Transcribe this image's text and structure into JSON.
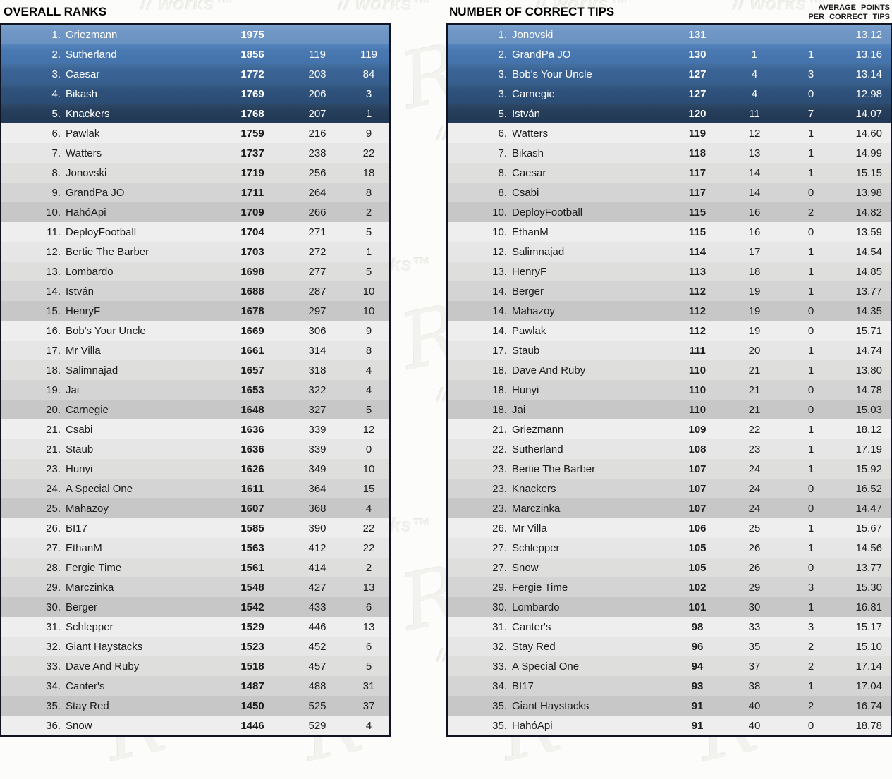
{
  "watermark": {
    "text": "works™",
    "swirl_glyph": "R"
  },
  "colors": {
    "blue_rows": [
      "#7097c6",
      "#4a79b2",
      "#3b6496",
      "#2f527c",
      "#263f5c"
    ],
    "gray_rows": [
      "#efeeee",
      "#e7e6e6",
      "#dededd",
      "#d5d4d4",
      "#c8c7c7"
    ],
    "table_border": "#101322",
    "row_text_dark": "#1c1c1c",
    "row_text_light": "#ffffff"
  },
  "left_table": {
    "title": "OVERALL RANKS",
    "rows": [
      {
        "rank": "1.",
        "name": "Griezmann",
        "points": "1975",
        "v1": "",
        "v2": ""
      },
      {
        "rank": "2.",
        "name": "Sutherland",
        "points": "1856",
        "v1": "119",
        "v2": "119"
      },
      {
        "rank": "3.",
        "name": "Caesar",
        "points": "1772",
        "v1": "203",
        "v2": "84"
      },
      {
        "rank": "4.",
        "name": "Bikash",
        "points": "1769",
        "v1": "206",
        "v2": "3"
      },
      {
        "rank": "5.",
        "name": "Knackers",
        "points": "1768",
        "v1": "207",
        "v2": "1"
      },
      {
        "rank": "6.",
        "name": "Pawlak",
        "points": "1759",
        "v1": "216",
        "v2": "9"
      },
      {
        "rank": "7.",
        "name": "Watters",
        "points": "1737",
        "v1": "238",
        "v2": "22"
      },
      {
        "rank": "8.",
        "name": "Jonovski",
        "points": "1719",
        "v1": "256",
        "v2": "18"
      },
      {
        "rank": "9.",
        "name": "GrandPa JO",
        "points": "1711",
        "v1": "264",
        "v2": "8"
      },
      {
        "rank": "10.",
        "name": "HahóApi",
        "points": "1709",
        "v1": "266",
        "v2": "2"
      },
      {
        "rank": "11.",
        "name": "DeployFootball",
        "points": "1704",
        "v1": "271",
        "v2": "5"
      },
      {
        "rank": "12.",
        "name": "Bertie The Barber",
        "points": "1703",
        "v1": "272",
        "v2": "1"
      },
      {
        "rank": "13.",
        "name": "Lombardo",
        "points": "1698",
        "v1": "277",
        "v2": "5"
      },
      {
        "rank": "14.",
        "name": "István",
        "points": "1688",
        "v1": "287",
        "v2": "10"
      },
      {
        "rank": "15.",
        "name": "HenryF",
        "points": "1678",
        "v1": "297",
        "v2": "10"
      },
      {
        "rank": "16.",
        "name": "Bob's Your Uncle",
        "points": "1669",
        "v1": "306",
        "v2": "9"
      },
      {
        "rank": "17.",
        "name": "Mr Villa",
        "points": "1661",
        "v1": "314",
        "v2": "8"
      },
      {
        "rank": "18.",
        "name": "Salimnajad",
        "points": "1657",
        "v1": "318",
        "v2": "4"
      },
      {
        "rank": "19.",
        "name": "Jai",
        "points": "1653",
        "v1": "322",
        "v2": "4"
      },
      {
        "rank": "20.",
        "name": "Carnegie",
        "points": "1648",
        "v1": "327",
        "v2": "5"
      },
      {
        "rank": "21.",
        "name": "Csabi",
        "points": "1636",
        "v1": "339",
        "v2": "12"
      },
      {
        "rank": "21.",
        "name": "Staub",
        "points": "1636",
        "v1": "339",
        "v2": "0"
      },
      {
        "rank": "23.",
        "name": "Hunyi",
        "points": "1626",
        "v1": "349",
        "v2": "10"
      },
      {
        "rank": "24.",
        "name": "A Special One",
        "points": "1611",
        "v1": "364",
        "v2": "15"
      },
      {
        "rank": "25.",
        "name": "Mahazoy",
        "points": "1607",
        "v1": "368",
        "v2": "4"
      },
      {
        "rank": "26.",
        "name": "BI17",
        "points": "1585",
        "v1": "390",
        "v2": "22"
      },
      {
        "rank": "27.",
        "name": "EthanM",
        "points": "1563",
        "v1": "412",
        "v2": "22"
      },
      {
        "rank": "28.",
        "name": "Fergie Time",
        "points": "1561",
        "v1": "414",
        "v2": "2"
      },
      {
        "rank": "29.",
        "name": "Marczinka",
        "points": "1548",
        "v1": "427",
        "v2": "13"
      },
      {
        "rank": "30.",
        "name": "Berger",
        "points": "1542",
        "v1": "433",
        "v2": "6"
      },
      {
        "rank": "31.",
        "name": "Schlepper",
        "points": "1529",
        "v1": "446",
        "v2": "13"
      },
      {
        "rank": "32.",
        "name": "Giant Haystacks",
        "points": "1523",
        "v1": "452",
        "v2": "6"
      },
      {
        "rank": "33.",
        "name": "Dave And Ruby",
        "points": "1518",
        "v1": "457",
        "v2": "5"
      },
      {
        "rank": "34.",
        "name": "Canter's",
        "points": "1487",
        "v1": "488",
        "v2": "31"
      },
      {
        "rank": "35.",
        "name": "Stay Red",
        "points": "1450",
        "v1": "525",
        "v2": "37"
      },
      {
        "rank": "36.",
        "name": "Snow",
        "points": "1446",
        "v1": "529",
        "v2": "4"
      }
    ]
  },
  "right_table": {
    "title": "NUMBER OF CORRECT TIPS",
    "avg_header_line1": "AVERAGE POINTS",
    "avg_header_line2": "PER CORRECT TIPS",
    "rows": [
      {
        "rank": "1.",
        "name": "Jonovski",
        "points": "131",
        "v1": "",
        "v2": "",
        "avg": "13.12"
      },
      {
        "rank": "2.",
        "name": "GrandPa JO",
        "points": "130",
        "v1": "1",
        "v2": "1",
        "avg": "13.16"
      },
      {
        "rank": "3.",
        "name": "Bob's Your Uncle",
        "points": "127",
        "v1": "4",
        "v2": "3",
        "avg": "13.14"
      },
      {
        "rank": "3.",
        "name": "Carnegie",
        "points": "127",
        "v1": "4",
        "v2": "0",
        "avg": "12.98"
      },
      {
        "rank": "5.",
        "name": "István",
        "points": "120",
        "v1": "11",
        "v2": "7",
        "avg": "14.07"
      },
      {
        "rank": "6.",
        "name": "Watters",
        "points": "119",
        "v1": "12",
        "v2": "1",
        "avg": "14.60"
      },
      {
        "rank": "7.",
        "name": "Bikash",
        "points": "118",
        "v1": "13",
        "v2": "1",
        "avg": "14.99"
      },
      {
        "rank": "8.",
        "name": "Caesar",
        "points": "117",
        "v1": "14",
        "v2": "1",
        "avg": "15.15"
      },
      {
        "rank": "8.",
        "name": "Csabi",
        "points": "117",
        "v1": "14",
        "v2": "0",
        "avg": "13.98"
      },
      {
        "rank": "10.",
        "name": "DeployFootball",
        "points": "115",
        "v1": "16",
        "v2": "2",
        "avg": "14.82"
      },
      {
        "rank": "10.",
        "name": "EthanM",
        "points": "115",
        "v1": "16",
        "v2": "0",
        "avg": "13.59"
      },
      {
        "rank": "12.",
        "name": "Salimnajad",
        "points": "114",
        "v1": "17",
        "v2": "1",
        "avg": "14.54"
      },
      {
        "rank": "13.",
        "name": "HenryF",
        "points": "113",
        "v1": "18",
        "v2": "1",
        "avg": "14.85"
      },
      {
        "rank": "14.",
        "name": "Berger",
        "points": "112",
        "v1": "19",
        "v2": "1",
        "avg": "13.77"
      },
      {
        "rank": "14.",
        "name": "Mahazoy",
        "points": "112",
        "v1": "19",
        "v2": "0",
        "avg": "14.35"
      },
      {
        "rank": "14.",
        "name": "Pawlak",
        "points": "112",
        "v1": "19",
        "v2": "0",
        "avg": "15.71"
      },
      {
        "rank": "17.",
        "name": "Staub",
        "points": "111",
        "v1": "20",
        "v2": "1",
        "avg": "14.74"
      },
      {
        "rank": "18.",
        "name": "Dave And Ruby",
        "points": "110",
        "v1": "21",
        "v2": "1",
        "avg": "13.80"
      },
      {
        "rank": "18.",
        "name": "Hunyi",
        "points": "110",
        "v1": "21",
        "v2": "0",
        "avg": "14.78"
      },
      {
        "rank": "18.",
        "name": "Jai",
        "points": "110",
        "v1": "21",
        "v2": "0",
        "avg": "15.03"
      },
      {
        "rank": "21.",
        "name": "Griezmann",
        "points": "109",
        "v1": "22",
        "v2": "1",
        "avg": "18.12"
      },
      {
        "rank": "22.",
        "name": "Sutherland",
        "points": "108",
        "v1": "23",
        "v2": "1",
        "avg": "17.19"
      },
      {
        "rank": "23.",
        "name": "Bertie The Barber",
        "points": "107",
        "v1": "24",
        "v2": "1",
        "avg": "15.92"
      },
      {
        "rank": "23.",
        "name": "Knackers",
        "points": "107",
        "v1": "24",
        "v2": "0",
        "avg": "16.52"
      },
      {
        "rank": "23.",
        "name": "Marczinka",
        "points": "107",
        "v1": "24",
        "v2": "0",
        "avg": "14.47"
      },
      {
        "rank": "26.",
        "name": "Mr Villa",
        "points": "106",
        "v1": "25",
        "v2": "1",
        "avg": "15.67"
      },
      {
        "rank": "27.",
        "name": "Schlepper",
        "points": "105",
        "v1": "26",
        "v2": "1",
        "avg": "14.56"
      },
      {
        "rank": "27.",
        "name": "Snow",
        "points": "105",
        "v1": "26",
        "v2": "0",
        "avg": "13.77"
      },
      {
        "rank": "29.",
        "name": "Fergie Time",
        "points": "102",
        "v1": "29",
        "v2": "3",
        "avg": "15.30"
      },
      {
        "rank": "30.",
        "name": "Lombardo",
        "points": "101",
        "v1": "30",
        "v2": "1",
        "avg": "16.81"
      },
      {
        "rank": "31.",
        "name": "Canter's",
        "points": "98",
        "v1": "33",
        "v2": "3",
        "avg": "15.17"
      },
      {
        "rank": "32.",
        "name": "Stay Red",
        "points": "96",
        "v1": "35",
        "v2": "2",
        "avg": "15.10"
      },
      {
        "rank": "33.",
        "name": "A Special One",
        "points": "94",
        "v1": "37",
        "v2": "2",
        "avg": "17.14"
      },
      {
        "rank": "34.",
        "name": "BI17",
        "points": "93",
        "v1": "38",
        "v2": "1",
        "avg": "17.04"
      },
      {
        "rank": "35.",
        "name": "Giant Haystacks",
        "points": "91",
        "v1": "40",
        "v2": "2",
        "avg": "16.74"
      },
      {
        "rank": "35.",
        "name": "HahóApi",
        "points": "91",
        "v1": "40",
        "v2": "0",
        "avg": "18.78"
      }
    ]
  }
}
